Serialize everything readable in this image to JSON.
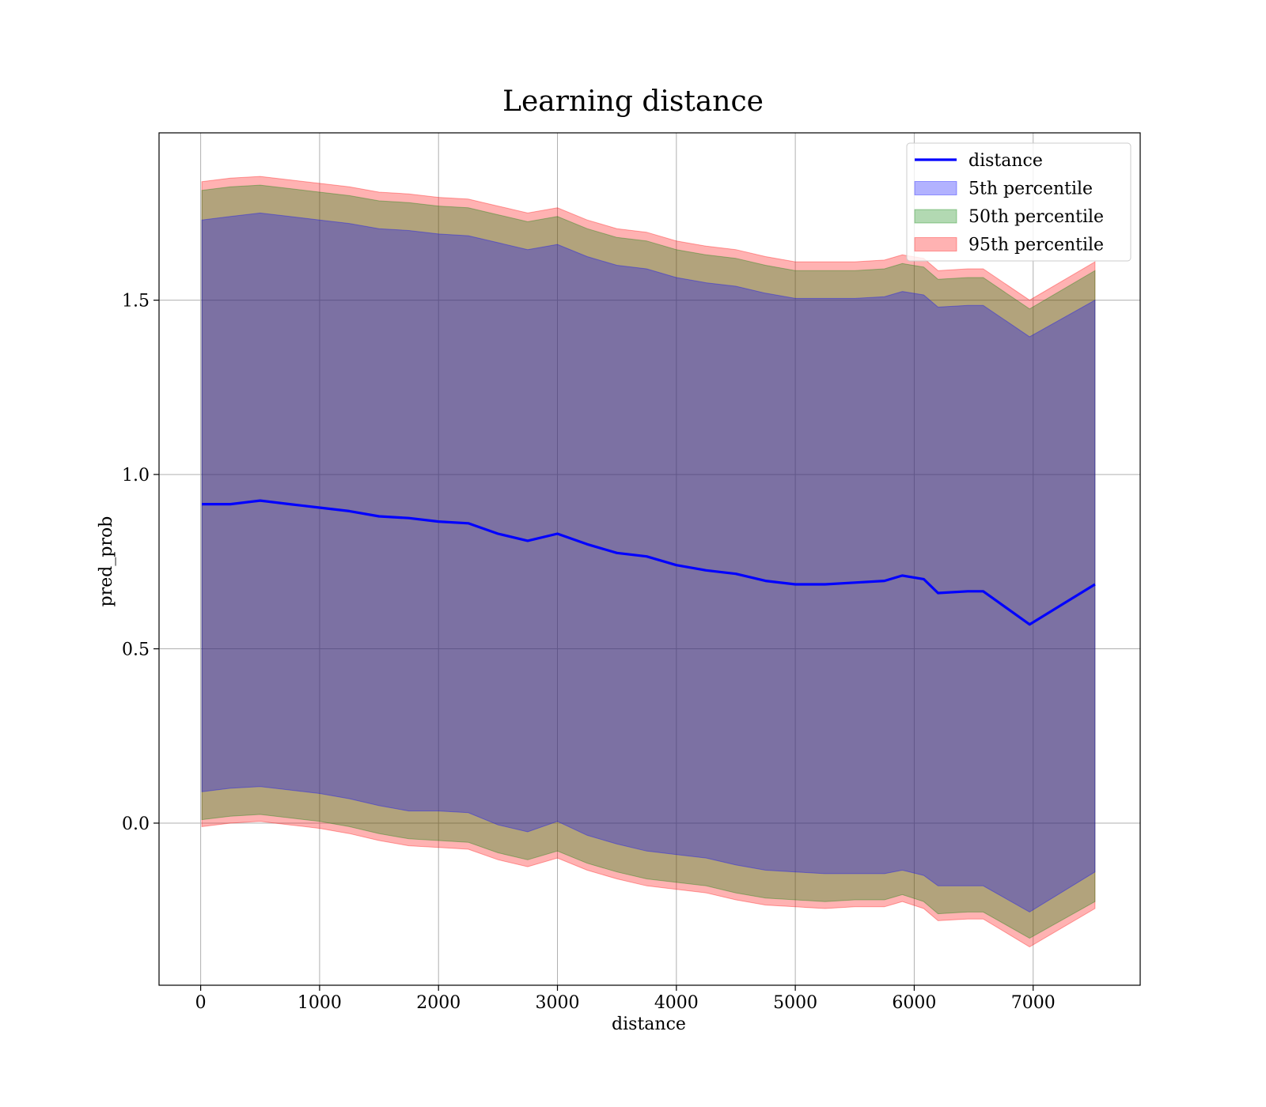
{
  "chart_data": {
    "type": "line",
    "title": "Learning distance",
    "xlabel": "distance",
    "ylabel": "pred_prob",
    "xlim": [
      -350,
      7900
    ],
    "ylim": [
      -0.465,
      1.98
    ],
    "xticks": [
      0,
      1000,
      2000,
      3000,
      4000,
      5000,
      6000,
      7000
    ],
    "yticks": [
      0.0,
      0.5,
      1.0,
      1.5
    ],
    "xtick_labels": [
      "0",
      "1000",
      "2000",
      "3000",
      "4000",
      "5000",
      "6000",
      "7000"
    ],
    "ytick_labels": [
      "0.0",
      "0.5",
      "1.0",
      "1.5"
    ],
    "grid": true,
    "legend": {
      "placement": "upper-right",
      "entries": [
        {
          "label": "distance",
          "kind": "line",
          "color": "#0000ff"
        },
        {
          "label": "5th percentile",
          "kind": "band",
          "color": "#0000ff"
        },
        {
          "label": "50th percentile",
          "kind": "band",
          "color": "#008000"
        },
        {
          "label": "95th percentile",
          "kind": "band",
          "color": "#ff0000"
        }
      ]
    },
    "x": [
      10,
      250,
      500,
      750,
      1000,
      1250,
      1500,
      1750,
      2000,
      2250,
      2500,
      2750,
      3000,
      3250,
      3500,
      3750,
      4000,
      4250,
      4500,
      4750,
      5000,
      5250,
      5500,
      5750,
      5900,
      6080,
      6200,
      6450,
      6580,
      6970,
      7520
    ],
    "series": [
      {
        "name": "distance",
        "kind": "line",
        "color": "#0000ff",
        "values": [
          0.915,
          0.915,
          0.925,
          0.915,
          0.905,
          0.895,
          0.88,
          0.875,
          0.865,
          0.86,
          0.83,
          0.81,
          0.83,
          0.8,
          0.775,
          0.765,
          0.74,
          0.725,
          0.715,
          0.695,
          0.685,
          0.685,
          0.69,
          0.695,
          0.71,
          0.7,
          0.66,
          0.665,
          0.665,
          0.57,
          0.685
        ]
      },
      {
        "name": "5th percentile",
        "kind": "band",
        "color": "#0000ff",
        "lower": [
          0.09,
          0.1,
          0.105,
          0.095,
          0.085,
          0.07,
          0.05,
          0.035,
          0.035,
          0.03,
          -0.005,
          -0.025,
          0.005,
          -0.035,
          -0.06,
          -0.08,
          -0.09,
          -0.1,
          -0.12,
          -0.135,
          -0.14,
          -0.145,
          -0.145,
          -0.145,
          -0.135,
          -0.15,
          -0.18,
          -0.18,
          -0.18,
          -0.255,
          -0.14
        ],
        "upper": [
          1.73,
          1.74,
          1.75,
          1.74,
          1.73,
          1.72,
          1.705,
          1.7,
          1.69,
          1.685,
          1.665,
          1.645,
          1.66,
          1.625,
          1.6,
          1.59,
          1.565,
          1.55,
          1.54,
          1.52,
          1.505,
          1.505,
          1.505,
          1.51,
          1.525,
          1.515,
          1.48,
          1.485,
          1.485,
          1.395,
          1.5
        ]
      },
      {
        "name": "50th percentile",
        "kind": "band",
        "color": "#008000",
        "lower": [
          0.01,
          0.02,
          0.025,
          0.015,
          0.005,
          -0.01,
          -0.03,
          -0.045,
          -0.05,
          -0.055,
          -0.085,
          -0.105,
          -0.08,
          -0.115,
          -0.14,
          -0.16,
          -0.17,
          -0.18,
          -0.2,
          -0.215,
          -0.22,
          -0.225,
          -0.22,
          -0.22,
          -0.205,
          -0.225,
          -0.26,
          -0.255,
          -0.255,
          -0.33,
          -0.225
        ],
        "upper": [
          1.815,
          1.825,
          1.83,
          1.82,
          1.81,
          1.8,
          1.785,
          1.78,
          1.77,
          1.765,
          1.745,
          1.725,
          1.74,
          1.705,
          1.68,
          1.67,
          1.645,
          1.63,
          1.62,
          1.6,
          1.585,
          1.585,
          1.585,
          1.59,
          1.605,
          1.595,
          1.56,
          1.565,
          1.565,
          1.475,
          1.585
        ]
      },
      {
        "name": "95th percentile",
        "kind": "band",
        "color": "#ff0000",
        "lower": [
          -0.01,
          0.0,
          0.005,
          -0.005,
          -0.015,
          -0.03,
          -0.05,
          -0.065,
          -0.07,
          -0.075,
          -0.105,
          -0.125,
          -0.1,
          -0.135,
          -0.16,
          -0.18,
          -0.19,
          -0.2,
          -0.22,
          -0.235,
          -0.24,
          -0.245,
          -0.24,
          -0.24,
          -0.225,
          -0.245,
          -0.28,
          -0.275,
          -0.275,
          -0.355,
          -0.245
        ],
        "upper": [
          1.84,
          1.85,
          1.855,
          1.845,
          1.835,
          1.825,
          1.81,
          1.805,
          1.795,
          1.79,
          1.77,
          1.75,
          1.765,
          1.73,
          1.705,
          1.695,
          1.67,
          1.655,
          1.645,
          1.625,
          1.61,
          1.61,
          1.61,
          1.615,
          1.63,
          1.62,
          1.585,
          1.59,
          1.59,
          1.5,
          1.61
        ]
      }
    ]
  }
}
